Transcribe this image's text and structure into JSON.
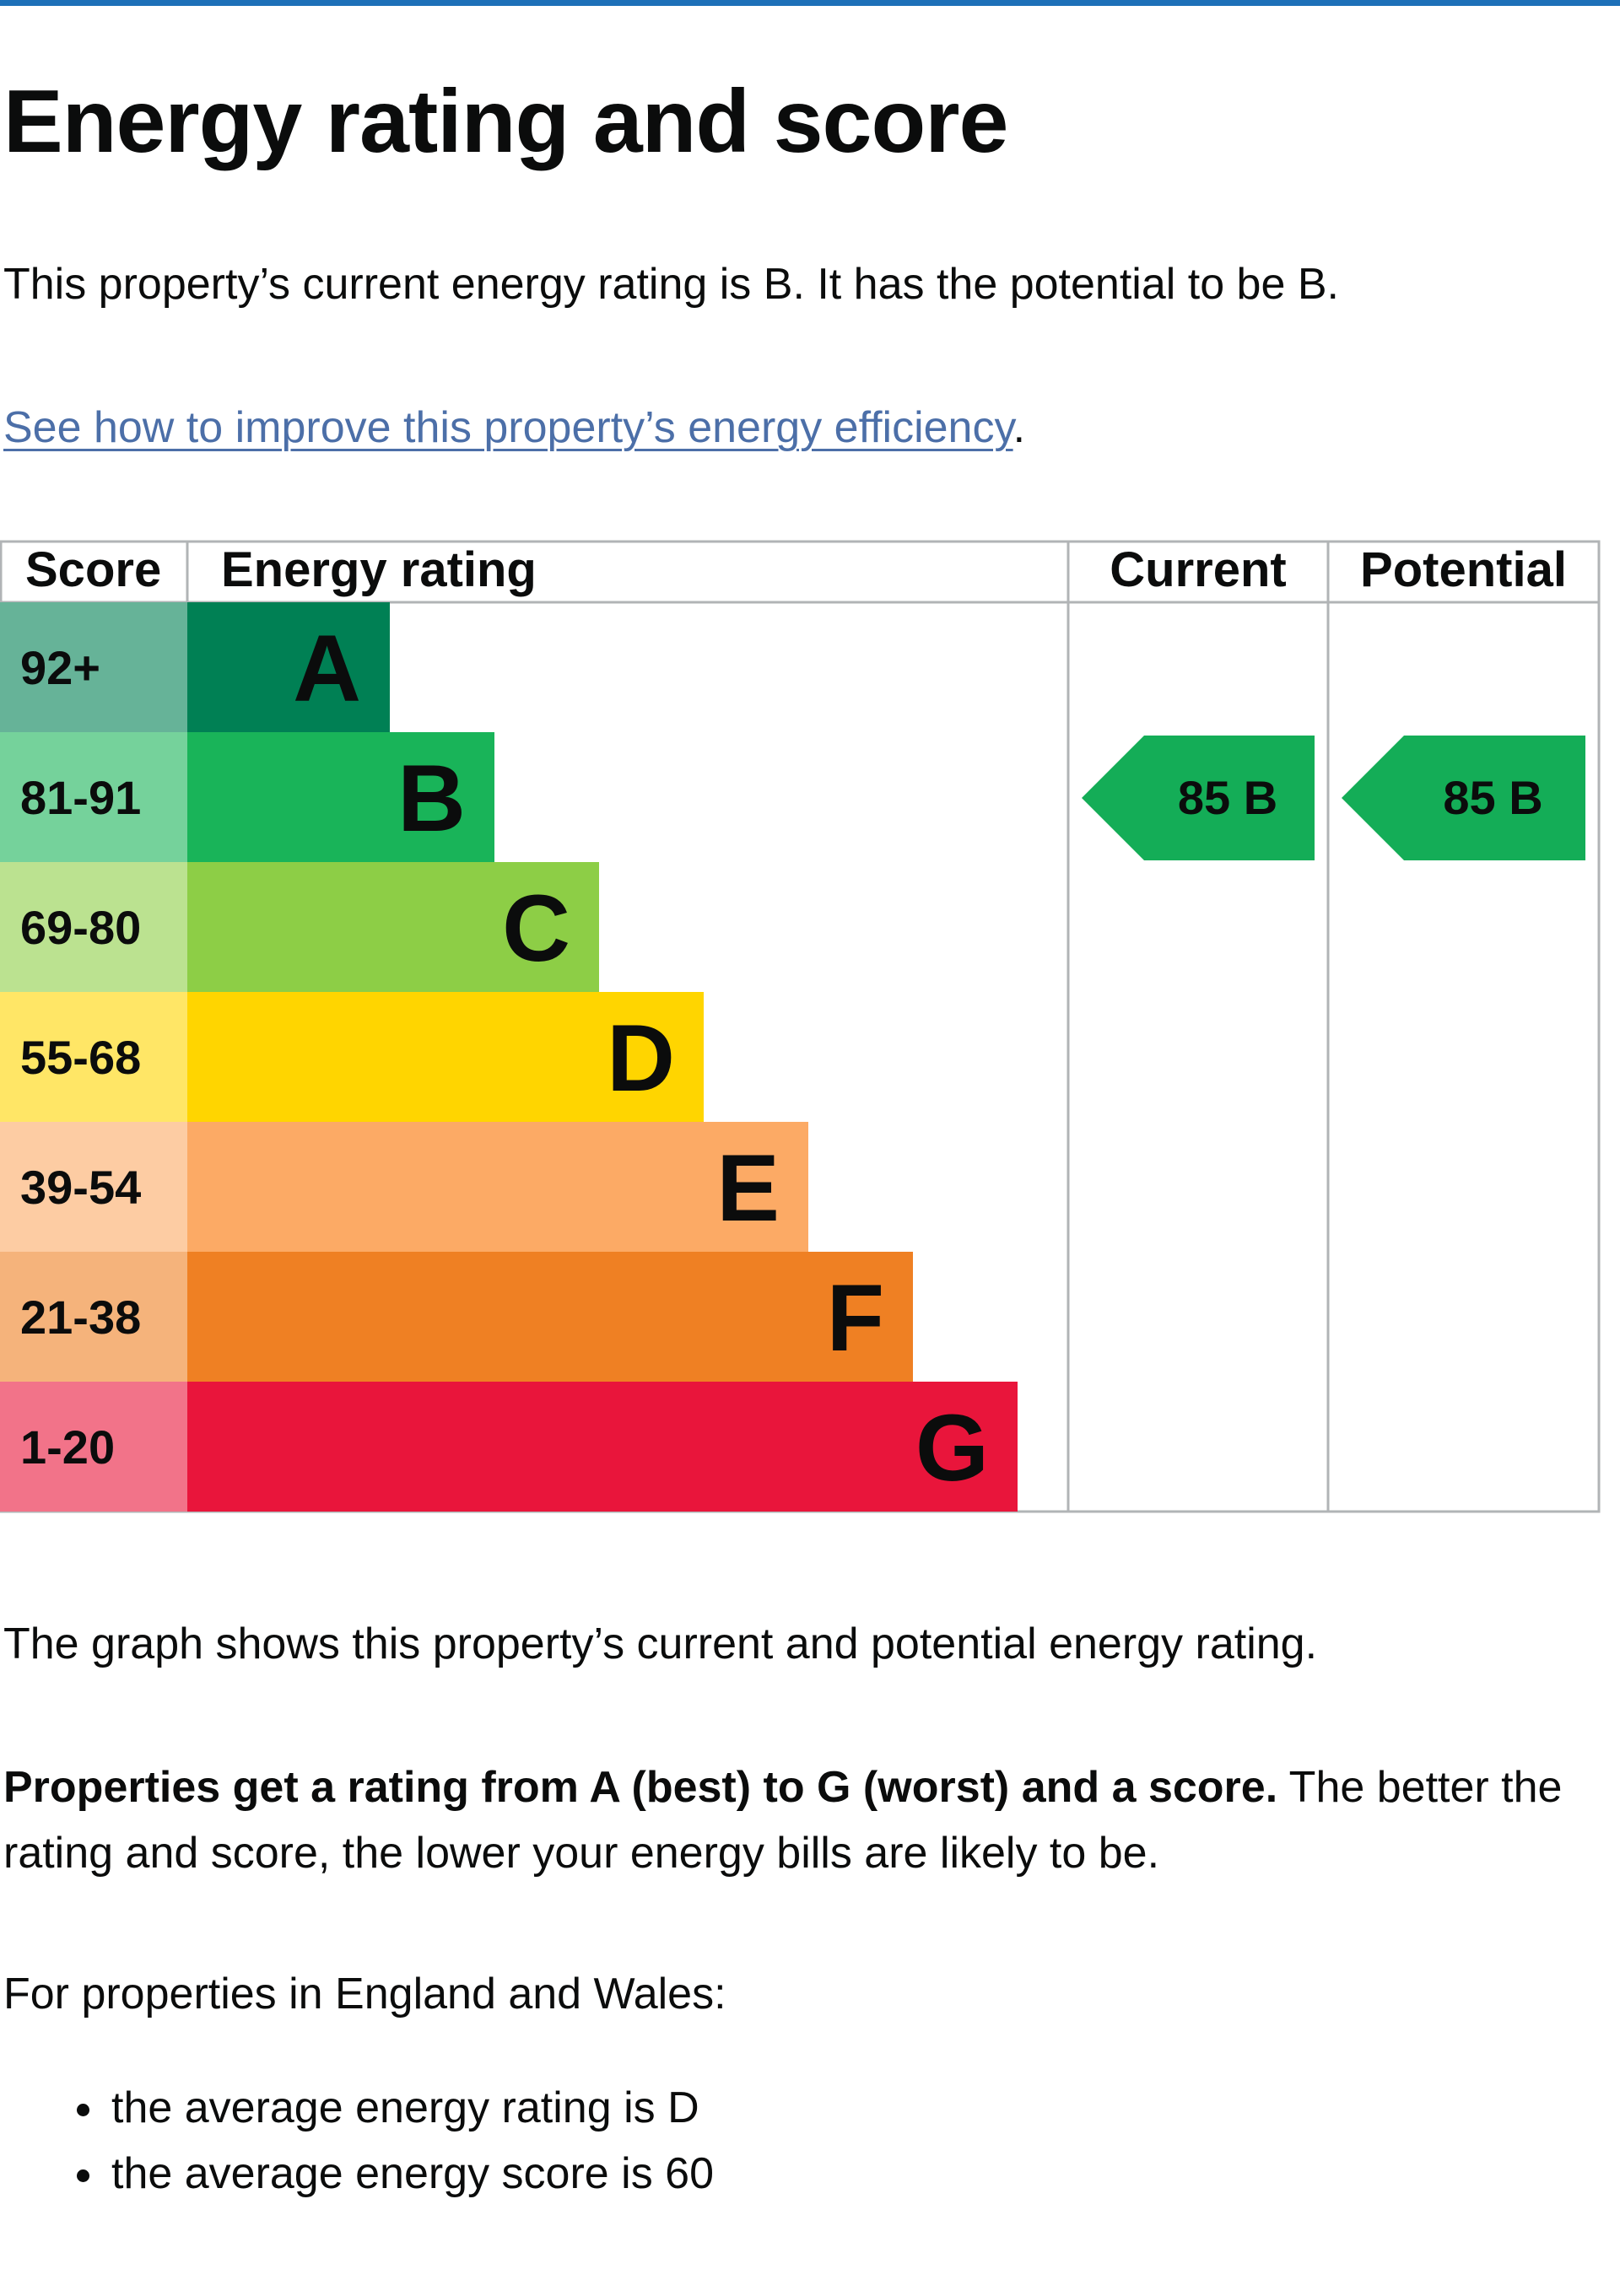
{
  "title": "Energy rating and score",
  "intro": "This property’s current energy rating is B. It has the potential to be B.",
  "improve_link": "See how to improve this property’s energy efficiency",
  "improve_link_trailing": ".",
  "colors": {
    "top_bar": "#1d70b8",
    "link": "#4c6fa8",
    "arrow": "#14ad57"
  },
  "chart_data": {
    "type": "bar",
    "headers": {
      "score": "Score",
      "rating": "Energy rating",
      "current": "Current",
      "potential": "Potential"
    },
    "bands": [
      {
        "letter": "A",
        "range": "92+",
        "min": 92,
        "max": 100,
        "color": "#008054",
        "score_color": "#66b398"
      },
      {
        "letter": "B",
        "range": "81-91",
        "min": 81,
        "max": 91,
        "color": "#19b459",
        "score_color": "#75d29b"
      },
      {
        "letter": "C",
        "range": "69-80",
        "min": 69,
        "max": 80,
        "color": "#8dce46",
        "score_color": "#bbe290"
      },
      {
        "letter": "D",
        "range": "55-68",
        "min": 55,
        "max": 68,
        "color": "#ffd500",
        "score_color": "#ffe666"
      },
      {
        "letter": "E",
        "range": "39-54",
        "min": 39,
        "max": 54,
        "color": "#fcaa65",
        "score_color": "#fdcca3"
      },
      {
        "letter": "F",
        "range": "21-38",
        "min": 21,
        "max": 38,
        "color": "#ef8023",
        "score_color": "#f5b37b"
      },
      {
        "letter": "G",
        "range": "1-20",
        "min": 1,
        "max": 20,
        "color": "#e9153b",
        "score_color": "#f27389"
      }
    ],
    "current": {
      "score": 85,
      "band": "B"
    },
    "potential": {
      "score": 85,
      "band": "B"
    }
  },
  "graph_caption": "The graph shows this property’s current and potential energy rating.",
  "explain_bold": "Properties get a rating from A (best) to G (worst) and a score.",
  "explain_rest": " The better the rating and score, the lower your energy bills are likely to be.",
  "average_intro": "For properties in England and Wales:",
  "averages": [
    "the average energy rating is D",
    "the average energy score is 60"
  ]
}
